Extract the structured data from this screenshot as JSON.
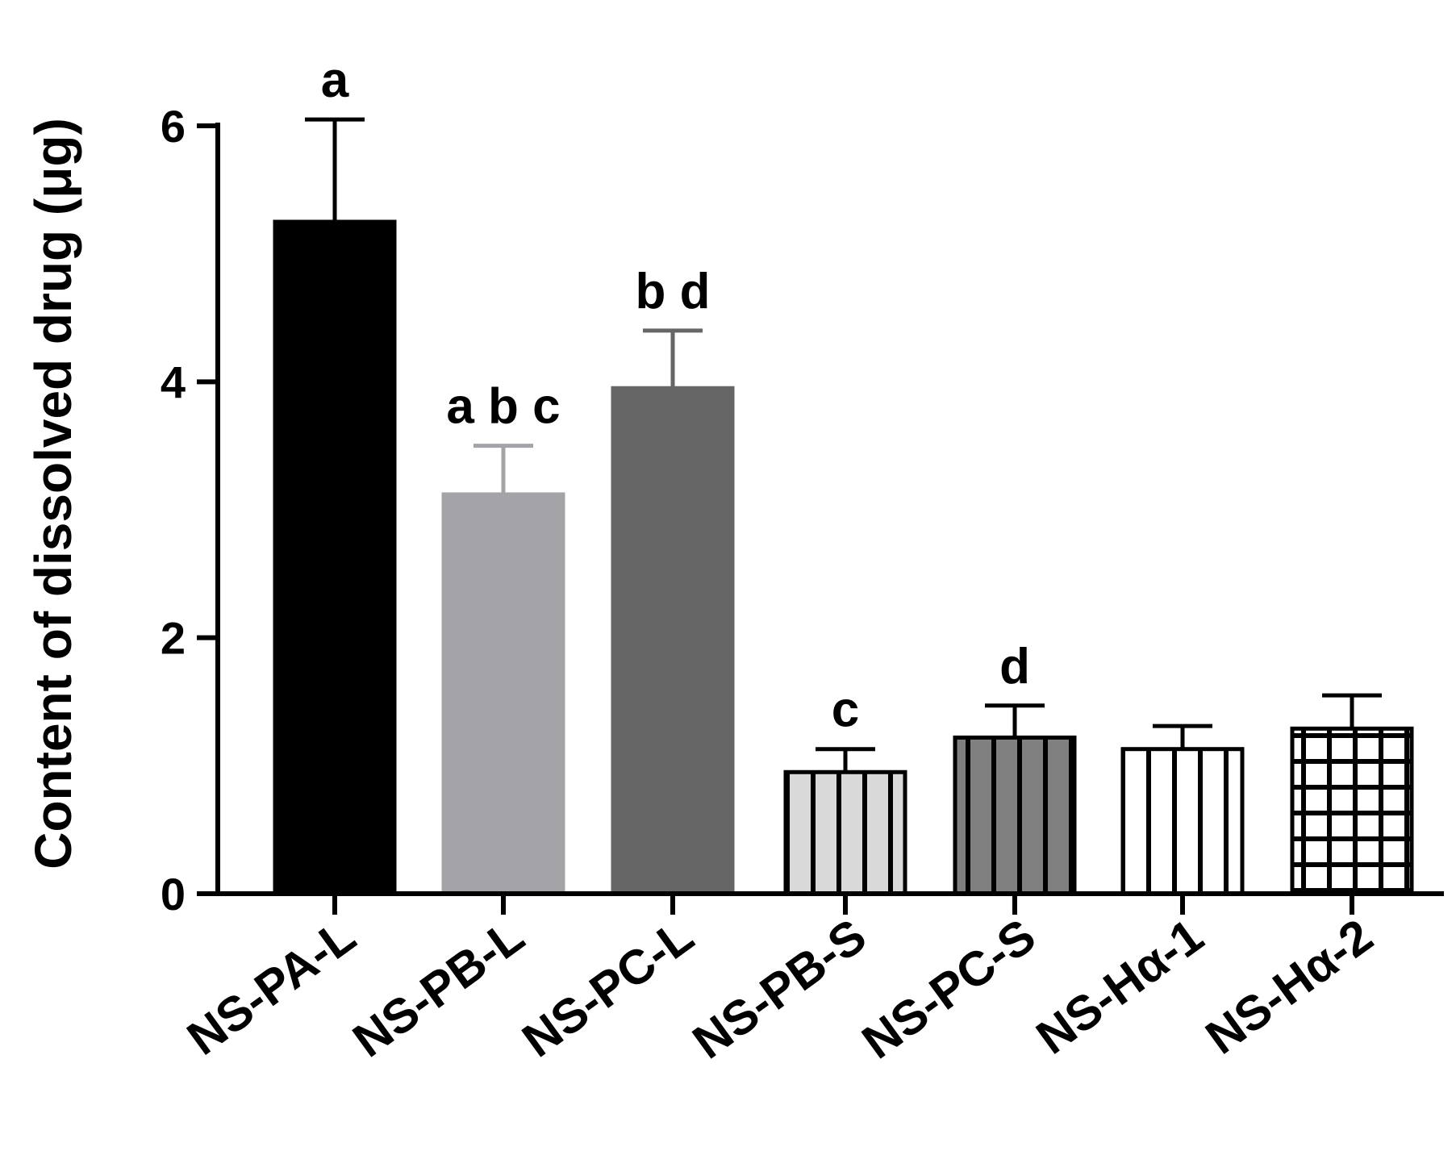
{
  "chart_data": {
    "type": "bar",
    "title": "",
    "xlabel": "",
    "ylabel": "Content of dissolved drug (μg)",
    "ylim": [
      0,
      6
    ],
    "yticks": [
      0,
      2,
      4,
      6
    ],
    "grid": false,
    "legend": "none",
    "categories": [
      "NS-PA-L",
      "NS-PB-L",
      "NS-PC-L",
      "NS-PB-S",
      "NS-PC-S",
      "NS-Hα-1",
      "NS-Hα-2"
    ],
    "values": [
      5.25,
      3.12,
      3.95,
      0.95,
      1.22,
      1.13,
      1.29
    ],
    "errors": [
      0.8,
      0.38,
      0.45,
      0.18,
      0.25,
      0.18,
      0.26
    ],
    "significance_labels": [
      "a",
      "a b c",
      "b d",
      "c",
      "d",
      "",
      ""
    ],
    "bar_styles": [
      {
        "fill": "#000000",
        "stroke": "#000000",
        "pattern": "solid"
      },
      {
        "fill": "#a4a3a8",
        "stroke": "#a4a3a8",
        "pattern": "solid"
      },
      {
        "fill": "#666666",
        "stroke": "#666666",
        "pattern": "solid"
      },
      {
        "fill": "#d9d9d9",
        "stroke": "#000000",
        "pattern": "vertical-stripes"
      },
      {
        "fill": "#808080",
        "stroke": "#000000",
        "pattern": "vertical-stripes"
      },
      {
        "fill": "#ffffff",
        "stroke": "#000000",
        "pattern": "vertical-stripes"
      },
      {
        "fill": "#ffffff",
        "stroke": "#000000",
        "pattern": "grid"
      }
    ]
  }
}
